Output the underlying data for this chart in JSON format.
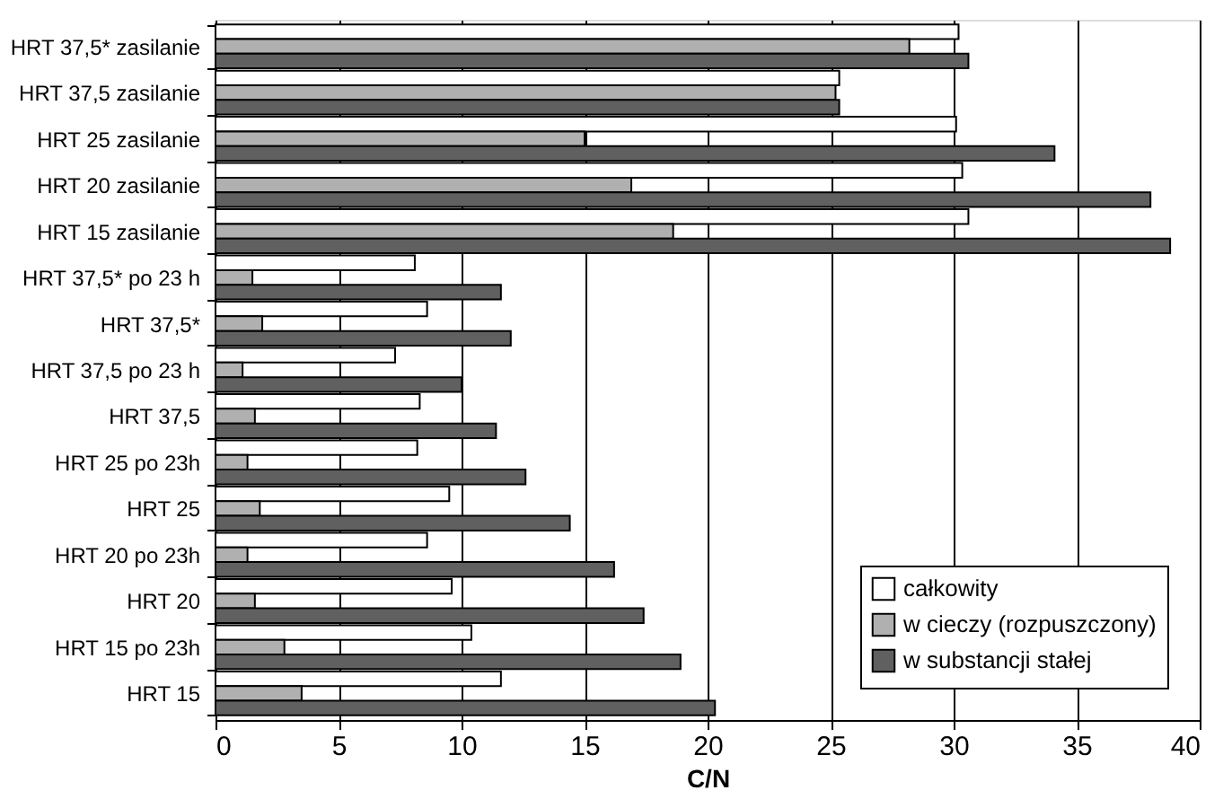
{
  "chart_data": {
    "type": "bar",
    "orientation": "horizontal",
    "xlabel": "C/N",
    "categories": [
      "HRT 37,5* zasilanie",
      "HRT 37,5 zasilanie",
      "HRT 25 zasilanie",
      "HRT 20 zasilanie",
      "HRT 15 zasilanie",
      "HRT 37,5* po 23 h",
      "HRT 37,5*",
      "HRT 37,5 po 23 h",
      "HRT 37,5",
      "HRT 25 po 23h",
      "HRT 25",
      "HRT 20 po 23h",
      "HRT 20",
      "HRT 15 po 23h",
      "HRT 15"
    ],
    "series": [
      {
        "name": "całkowity",
        "color": "#ffffff",
        "values": [
          30.2,
          25.35,
          30.1,
          30.35,
          30.6,
          8.1,
          8.6,
          7.3,
          8.3,
          8.2,
          9.5,
          8.6,
          9.6,
          10.4,
          11.6
        ]
      },
      {
        "name": "w cieczy (rozpuszczony)",
        "color": "#b0b0b0",
        "values": [
          28.2,
          25.2,
          15.0,
          16.9,
          18.6,
          1.5,
          1.9,
          1.1,
          1.6,
          1.3,
          1.8,
          1.3,
          1.6,
          2.8,
          3.5
        ]
      },
      {
        "name": "w substancji stałej",
        "color": "#606060",
        "values": [
          30.6,
          25.35,
          34.1,
          38.0,
          38.8,
          11.6,
          12.0,
          10.0,
          11.4,
          12.6,
          14.4,
          16.2,
          17.4,
          18.9,
          20.3
        ]
      }
    ],
    "xlim": [
      0,
      40
    ],
    "xticks": [
      0,
      5,
      10,
      15,
      20,
      25,
      30,
      35,
      40
    ],
    "grid": "x",
    "legend": "bottom right"
  }
}
